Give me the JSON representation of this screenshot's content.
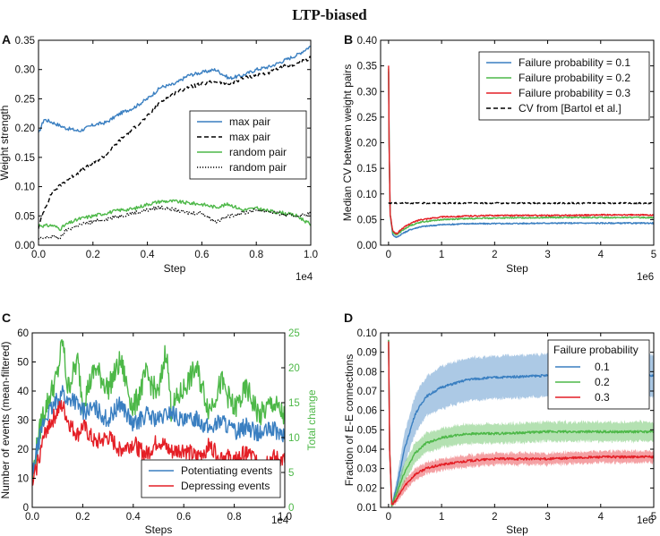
{
  "figure_title": "LTP-biased",
  "colors": {
    "blue": "#3a7fc1",
    "green": "#4db848",
    "red": "#e41f26",
    "black": "#000000"
  },
  "chart_data": [
    {
      "panel": "A",
      "type": "line",
      "xlabel": "Step",
      "ylabel": "Weight strength",
      "xlim": [
        0,
        1.0
      ],
      "ylim": [
        0.0,
        0.35
      ],
      "xticks": [
        0.0,
        0.2,
        0.4,
        0.6,
        0.8,
        1.0
      ],
      "xtick_labels": [
        "0.0",
        "0.2",
        "0.4",
        "0.6",
        "0.8",
        "1.0"
      ],
      "yticks": [
        0.0,
        0.05,
        0.1,
        0.15,
        0.2,
        0.25,
        0.3,
        0.35
      ],
      "ytick_labels": [
        "0.00",
        "0.05",
        "0.10",
        "0.15",
        "0.20",
        "0.25",
        "0.30",
        "0.35"
      ],
      "x_offset_label": "1e4",
      "legend_position": "center-right",
      "series": [
        {
          "name": "max pair",
          "color": "#3a7fc1",
          "style": "solid",
          "x": [
            0.0,
            0.02,
            0.05,
            0.1,
            0.15,
            0.2,
            0.25,
            0.3,
            0.35,
            0.4,
            0.45,
            0.5,
            0.55,
            0.6,
            0.65,
            0.7,
            0.75,
            0.8,
            0.85,
            0.9,
            0.95,
            1.0
          ],
          "y": [
            0.19,
            0.215,
            0.21,
            0.2,
            0.195,
            0.205,
            0.21,
            0.225,
            0.235,
            0.25,
            0.27,
            0.275,
            0.29,
            0.295,
            0.3,
            0.285,
            0.29,
            0.3,
            0.305,
            0.315,
            0.325,
            0.34
          ]
        },
        {
          "name": "max pair",
          "color": "#000000",
          "style": "dashed",
          "x": [
            0.0,
            0.02,
            0.05,
            0.1,
            0.15,
            0.2,
            0.25,
            0.3,
            0.35,
            0.4,
            0.45,
            0.5,
            0.55,
            0.6,
            0.65,
            0.7,
            0.75,
            0.8,
            0.85,
            0.9,
            0.95,
            1.0
          ],
          "y": [
            0.03,
            0.06,
            0.09,
            0.11,
            0.125,
            0.14,
            0.155,
            0.18,
            0.2,
            0.22,
            0.245,
            0.26,
            0.27,
            0.275,
            0.28,
            0.275,
            0.285,
            0.29,
            0.295,
            0.305,
            0.31,
            0.32
          ]
        },
        {
          "name": "random pair",
          "color": "#4db848",
          "style": "solid",
          "x": [
            0.0,
            0.02,
            0.05,
            0.08,
            0.1,
            0.15,
            0.2,
            0.25,
            0.3,
            0.35,
            0.4,
            0.45,
            0.5,
            0.55,
            0.6,
            0.65,
            0.7,
            0.75,
            0.8,
            0.85,
            0.9,
            0.95,
            1.0
          ],
          "y": [
            0.035,
            0.033,
            0.034,
            0.028,
            0.035,
            0.045,
            0.05,
            0.055,
            0.06,
            0.062,
            0.07,
            0.075,
            0.075,
            0.072,
            0.07,
            0.065,
            0.07,
            0.06,
            0.063,
            0.058,
            0.055,
            0.05,
            0.035
          ]
        },
        {
          "name": "random pair",
          "color": "#000000",
          "style": "dotted",
          "x": [
            0.0,
            0.02,
            0.05,
            0.08,
            0.1,
            0.15,
            0.2,
            0.25,
            0.3,
            0.35,
            0.4,
            0.45,
            0.5,
            0.55,
            0.6,
            0.65,
            0.7,
            0.75,
            0.8,
            0.85,
            0.9,
            0.95,
            1.0
          ],
          "y": [
            0.01,
            0.012,
            0.015,
            0.012,
            0.025,
            0.035,
            0.04,
            0.045,
            0.05,
            0.055,
            0.06,
            0.065,
            0.06,
            0.055,
            0.055,
            0.04,
            0.05,
            0.055,
            0.06,
            0.058,
            0.052,
            0.05,
            0.055
          ]
        }
      ]
    },
    {
      "panel": "B",
      "type": "line",
      "xlabel": "Step",
      "ylabel": "Median CV between weight pairs",
      "xlim": [
        -0.15,
        5
      ],
      "ylim": [
        0.0,
        0.4
      ],
      "xticks": [
        0,
        1,
        2,
        3,
        4,
        5
      ],
      "xtick_labels": [
        "0",
        "1",
        "2",
        "3",
        "4",
        "5"
      ],
      "yticks": [
        0.0,
        0.05,
        0.1,
        0.15,
        0.2,
        0.25,
        0.3,
        0.35,
        0.4
      ],
      "ytick_labels": [
        "0.00",
        "0.05",
        "0.10",
        "0.15",
        "0.20",
        "0.25",
        "0.30",
        "0.35",
        "0.40"
      ],
      "x_offset_label": "1e6",
      "legend_position": "top-right",
      "series": [
        {
          "name": "Failure probability = 0.1",
          "color": "#3a7fc1",
          "style": "solid",
          "x": [
            0.0,
            0.01,
            0.03,
            0.08,
            0.15,
            0.25,
            0.4,
            0.6,
            1.0,
            1.5,
            2.0,
            3.0,
            4.0,
            5.0
          ],
          "y": [
            0.34,
            0.2,
            0.06,
            0.02,
            0.015,
            0.022,
            0.03,
            0.036,
            0.04,
            0.042,
            0.042,
            0.043,
            0.043,
            0.043
          ]
        },
        {
          "name": "Failure probability = 0.2",
          "color": "#4db848",
          "style": "solid",
          "x": [
            0.0,
            0.01,
            0.03,
            0.08,
            0.15,
            0.25,
            0.4,
            0.6,
            1.0,
            1.5,
            2.0,
            3.0,
            4.0,
            5.0
          ],
          "y": [
            0.345,
            0.2,
            0.06,
            0.025,
            0.02,
            0.028,
            0.038,
            0.045,
            0.05,
            0.052,
            0.053,
            0.054,
            0.054,
            0.054
          ]
        },
        {
          "name": "Failure probability = 0.3",
          "color": "#e41f26",
          "style": "solid",
          "x": [
            0.0,
            0.01,
            0.03,
            0.08,
            0.15,
            0.25,
            0.4,
            0.6,
            1.0,
            1.5,
            2.0,
            3.0,
            4.0,
            5.0
          ],
          "y": [
            0.35,
            0.2,
            0.06,
            0.028,
            0.022,
            0.032,
            0.042,
            0.05,
            0.055,
            0.057,
            0.058,
            0.058,
            0.059,
            0.059
          ]
        },
        {
          "name": "CV from [Bartol et al.]",
          "color": "#000000",
          "style": "dashed",
          "x": [
            0.0,
            5.0
          ],
          "y": [
            0.082,
            0.082
          ]
        }
      ]
    },
    {
      "panel": "C",
      "type": "line",
      "xlabel": "Steps",
      "ylabel": "Number of events (mean-filtered)",
      "y2label": "Total change",
      "xlim": [
        0,
        1.0
      ],
      "ylim": [
        0,
        60
      ],
      "y2lim": [
        0,
        25
      ],
      "xticks": [
        0.0,
        0.2,
        0.4,
        0.6,
        0.8,
        1.0
      ],
      "xtick_labels": [
        "0.0",
        "0.2",
        "0.4",
        "0.6",
        "0.8",
        "1.0"
      ],
      "yticks": [
        0,
        10,
        20,
        30,
        40,
        50,
        60
      ],
      "ytick_labels": [
        "0",
        "10",
        "20",
        "30",
        "40",
        "50",
        "60"
      ],
      "y2ticks": [
        0,
        5,
        10,
        15,
        20,
        25
      ],
      "y2tick_labels": [
        "0",
        "5",
        "10",
        "15",
        "20",
        "25"
      ],
      "x_offset_label": "1e4",
      "legend_position": "lower-right",
      "series": [
        {
          "name": "Total change",
          "color": "#4db848",
          "style": "solid",
          "axis": "right",
          "in_legend": false,
          "x": [
            0.0,
            0.02,
            0.04,
            0.06,
            0.08,
            0.1,
            0.12,
            0.14,
            0.16,
            0.18,
            0.2,
            0.25,
            0.3,
            0.35,
            0.4,
            0.45,
            0.5,
            0.53,
            0.55,
            0.6,
            0.65,
            0.7,
            0.75,
            0.8,
            0.85,
            0.9,
            0.95,
            1.0
          ],
          "y": [
            4,
            9,
            13,
            15,
            17,
            19,
            24,
            17,
            19,
            21,
            15,
            20,
            17,
            21,
            14,
            19,
            16,
            23,
            14,
            17,
            20,
            14,
            18,
            14,
            17,
            13,
            15,
            13
          ]
        },
        {
          "name": "Potentiating events",
          "color": "#3a7fc1",
          "style": "solid",
          "axis": "left",
          "x": [
            0.0,
            0.02,
            0.04,
            0.06,
            0.08,
            0.1,
            0.12,
            0.14,
            0.16,
            0.18,
            0.2,
            0.25,
            0.3,
            0.35,
            0.4,
            0.45,
            0.5,
            0.55,
            0.6,
            0.65,
            0.7,
            0.75,
            0.8,
            0.85,
            0.9,
            0.95,
            1.0
          ],
          "y": [
            10,
            20,
            28,
            32,
            34,
            37,
            40,
            36,
            38,
            35,
            33,
            34,
            30,
            36,
            28,
            32,
            30,
            33,
            29,
            31,
            27,
            30,
            26,
            28,
            25,
            27,
            24
          ]
        },
        {
          "name": "Depressing events",
          "color": "#e41f26",
          "style": "solid",
          "axis": "left",
          "x": [
            0.0,
            0.02,
            0.04,
            0.06,
            0.08,
            0.1,
            0.12,
            0.14,
            0.16,
            0.18,
            0.2,
            0.25,
            0.3,
            0.35,
            0.4,
            0.45,
            0.5,
            0.55,
            0.6,
            0.65,
            0.7,
            0.75,
            0.8,
            0.85,
            0.9,
            0.95,
            1.0
          ],
          "y": [
            7,
            15,
            22,
            28,
            30,
            33,
            35,
            30,
            27,
            25,
            28,
            22,
            24,
            20,
            22,
            18,
            23,
            19,
            20,
            17,
            21,
            18,
            16,
            19,
            15,
            17,
            16
          ]
        }
      ]
    },
    {
      "panel": "D",
      "type": "area",
      "xlabel": "Step",
      "ylabel": "Fraction of E-E connections",
      "xlim": [
        -0.15,
        5
      ],
      "ylim": [
        0.01,
        0.1
      ],
      "xticks": [
        0,
        1,
        2,
        3,
        4,
        5
      ],
      "xtick_labels": [
        "0",
        "1",
        "2",
        "3",
        "4",
        "5"
      ],
      "yticks": [
        0.01,
        0.02,
        0.03,
        0.04,
        0.05,
        0.06,
        0.07,
        0.08,
        0.09,
        0.1
      ],
      "ytick_labels": [
        "0.01",
        "0.02",
        "0.03",
        "0.04",
        "0.05",
        "0.06",
        "0.07",
        "0.08",
        "0.09",
        "0.10"
      ],
      "x_offset_label": "1e6",
      "legend_title": "Failure probability",
      "legend_position": "top-right",
      "series": [
        {
          "name": "0.1",
          "color": "#3a7fc1",
          "x": [
            0.0,
            0.02,
            0.06,
            0.15,
            0.3,
            0.5,
            0.7,
            1.0,
            1.5,
            2.0,
            3.0,
            4.0,
            5.0
          ],
          "y": [
            0.096,
            0.04,
            0.011,
            0.02,
            0.04,
            0.058,
            0.067,
            0.072,
            0.076,
            0.077,
            0.078,
            0.078,
            0.078
          ],
          "band": [
            0.0,
            0.01,
            0.001,
            0.004,
            0.008,
            0.01,
            0.01,
            0.011,
            0.011,
            0.011,
            0.011,
            0.011,
            0.011
          ]
        },
        {
          "name": "0.2",
          "color": "#4db848",
          "x": [
            0.0,
            0.02,
            0.06,
            0.15,
            0.3,
            0.5,
            0.7,
            1.0,
            1.5,
            2.0,
            3.0,
            4.0,
            5.0
          ],
          "y": [
            0.096,
            0.04,
            0.011,
            0.017,
            0.028,
            0.038,
            0.043,
            0.046,
            0.048,
            0.048,
            0.049,
            0.049,
            0.049
          ],
          "band": [
            0.0,
            0.006,
            0.001,
            0.003,
            0.005,
            0.005,
            0.005,
            0.005,
            0.005,
            0.005,
            0.005,
            0.005,
            0.005
          ]
        },
        {
          "name": "0.3",
          "color": "#e41f26",
          "x": [
            0.0,
            0.02,
            0.06,
            0.15,
            0.3,
            0.5,
            0.7,
            1.0,
            1.5,
            2.0,
            3.0,
            4.0,
            5.0
          ],
          "y": [
            0.096,
            0.04,
            0.011,
            0.014,
            0.021,
            0.027,
            0.03,
            0.032,
            0.034,
            0.035,
            0.035,
            0.036,
            0.036
          ],
          "band": [
            0.0,
            0.004,
            0.001,
            0.002,
            0.003,
            0.003,
            0.003,
            0.003,
            0.003,
            0.003,
            0.003,
            0.003,
            0.003
          ]
        }
      ]
    }
  ]
}
